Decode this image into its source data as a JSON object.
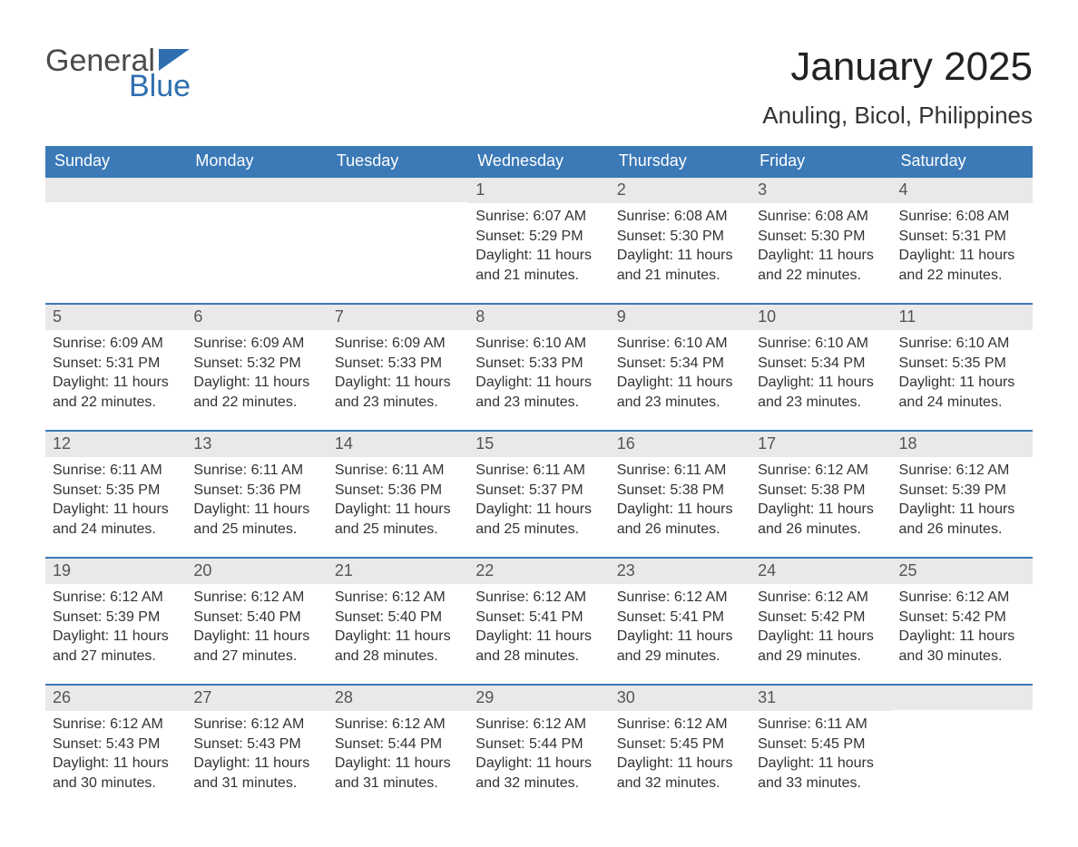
{
  "logo": {
    "text1": "General",
    "text2": "Blue",
    "tri_color": "#2f6fb0"
  },
  "title": "January 2025",
  "location": "Anuling, Bicol, Philippines",
  "header_bg": "#3b79b7",
  "daynum_bg": "#e9e9e9",
  "days_of_week": [
    "Sunday",
    "Monday",
    "Tuesday",
    "Wednesday",
    "Thursday",
    "Friday",
    "Saturday"
  ],
  "weeks": [
    [
      null,
      null,
      null,
      {
        "n": "1",
        "sunrise": "6:07 AM",
        "sunset": "5:29 PM",
        "dl": "11 hours and 21 minutes."
      },
      {
        "n": "2",
        "sunrise": "6:08 AM",
        "sunset": "5:30 PM",
        "dl": "11 hours and 21 minutes."
      },
      {
        "n": "3",
        "sunrise": "6:08 AM",
        "sunset": "5:30 PM",
        "dl": "11 hours and 22 minutes."
      },
      {
        "n": "4",
        "sunrise": "6:08 AM",
        "sunset": "5:31 PM",
        "dl": "11 hours and 22 minutes."
      }
    ],
    [
      {
        "n": "5",
        "sunrise": "6:09 AM",
        "sunset": "5:31 PM",
        "dl": "11 hours and 22 minutes."
      },
      {
        "n": "6",
        "sunrise": "6:09 AM",
        "sunset": "5:32 PM",
        "dl": "11 hours and 22 minutes."
      },
      {
        "n": "7",
        "sunrise": "6:09 AM",
        "sunset": "5:33 PM",
        "dl": "11 hours and 23 minutes."
      },
      {
        "n": "8",
        "sunrise": "6:10 AM",
        "sunset": "5:33 PM",
        "dl": "11 hours and 23 minutes."
      },
      {
        "n": "9",
        "sunrise": "6:10 AM",
        "sunset": "5:34 PM",
        "dl": "11 hours and 23 minutes."
      },
      {
        "n": "10",
        "sunrise": "6:10 AM",
        "sunset": "5:34 PM",
        "dl": "11 hours and 23 minutes."
      },
      {
        "n": "11",
        "sunrise": "6:10 AM",
        "sunset": "5:35 PM",
        "dl": "11 hours and 24 minutes."
      }
    ],
    [
      {
        "n": "12",
        "sunrise": "6:11 AM",
        "sunset": "5:35 PM",
        "dl": "11 hours and 24 minutes."
      },
      {
        "n": "13",
        "sunrise": "6:11 AM",
        "sunset": "5:36 PM",
        "dl": "11 hours and 25 minutes."
      },
      {
        "n": "14",
        "sunrise": "6:11 AM",
        "sunset": "5:36 PM",
        "dl": "11 hours and 25 minutes."
      },
      {
        "n": "15",
        "sunrise": "6:11 AM",
        "sunset": "5:37 PM",
        "dl": "11 hours and 25 minutes."
      },
      {
        "n": "16",
        "sunrise": "6:11 AM",
        "sunset": "5:38 PM",
        "dl": "11 hours and 26 minutes."
      },
      {
        "n": "17",
        "sunrise": "6:12 AM",
        "sunset": "5:38 PM",
        "dl": "11 hours and 26 minutes."
      },
      {
        "n": "18",
        "sunrise": "6:12 AM",
        "sunset": "5:39 PM",
        "dl": "11 hours and 26 minutes."
      }
    ],
    [
      {
        "n": "19",
        "sunrise": "6:12 AM",
        "sunset": "5:39 PM",
        "dl": "11 hours and 27 minutes."
      },
      {
        "n": "20",
        "sunrise": "6:12 AM",
        "sunset": "5:40 PM",
        "dl": "11 hours and 27 minutes."
      },
      {
        "n": "21",
        "sunrise": "6:12 AM",
        "sunset": "5:40 PM",
        "dl": "11 hours and 28 minutes."
      },
      {
        "n": "22",
        "sunrise": "6:12 AM",
        "sunset": "5:41 PM",
        "dl": "11 hours and 28 minutes."
      },
      {
        "n": "23",
        "sunrise": "6:12 AM",
        "sunset": "5:41 PM",
        "dl": "11 hours and 29 minutes."
      },
      {
        "n": "24",
        "sunrise": "6:12 AM",
        "sunset": "5:42 PM",
        "dl": "11 hours and 29 minutes."
      },
      {
        "n": "25",
        "sunrise": "6:12 AM",
        "sunset": "5:42 PM",
        "dl": "11 hours and 30 minutes."
      }
    ],
    [
      {
        "n": "26",
        "sunrise": "6:12 AM",
        "sunset": "5:43 PM",
        "dl": "11 hours and 30 minutes."
      },
      {
        "n": "27",
        "sunrise": "6:12 AM",
        "sunset": "5:43 PM",
        "dl": "11 hours and 31 minutes."
      },
      {
        "n": "28",
        "sunrise": "6:12 AM",
        "sunset": "5:44 PM",
        "dl": "11 hours and 31 minutes."
      },
      {
        "n": "29",
        "sunrise": "6:12 AM",
        "sunset": "5:44 PM",
        "dl": "11 hours and 32 minutes."
      },
      {
        "n": "30",
        "sunrise": "6:12 AM",
        "sunset": "5:45 PM",
        "dl": "11 hours and 32 minutes."
      },
      {
        "n": "31",
        "sunrise": "6:11 AM",
        "sunset": "5:45 PM",
        "dl": "11 hours and 33 minutes."
      },
      null
    ]
  ],
  "labels": {
    "sunrise": "Sunrise: ",
    "sunset": "Sunset: ",
    "daylight": "Daylight: "
  }
}
